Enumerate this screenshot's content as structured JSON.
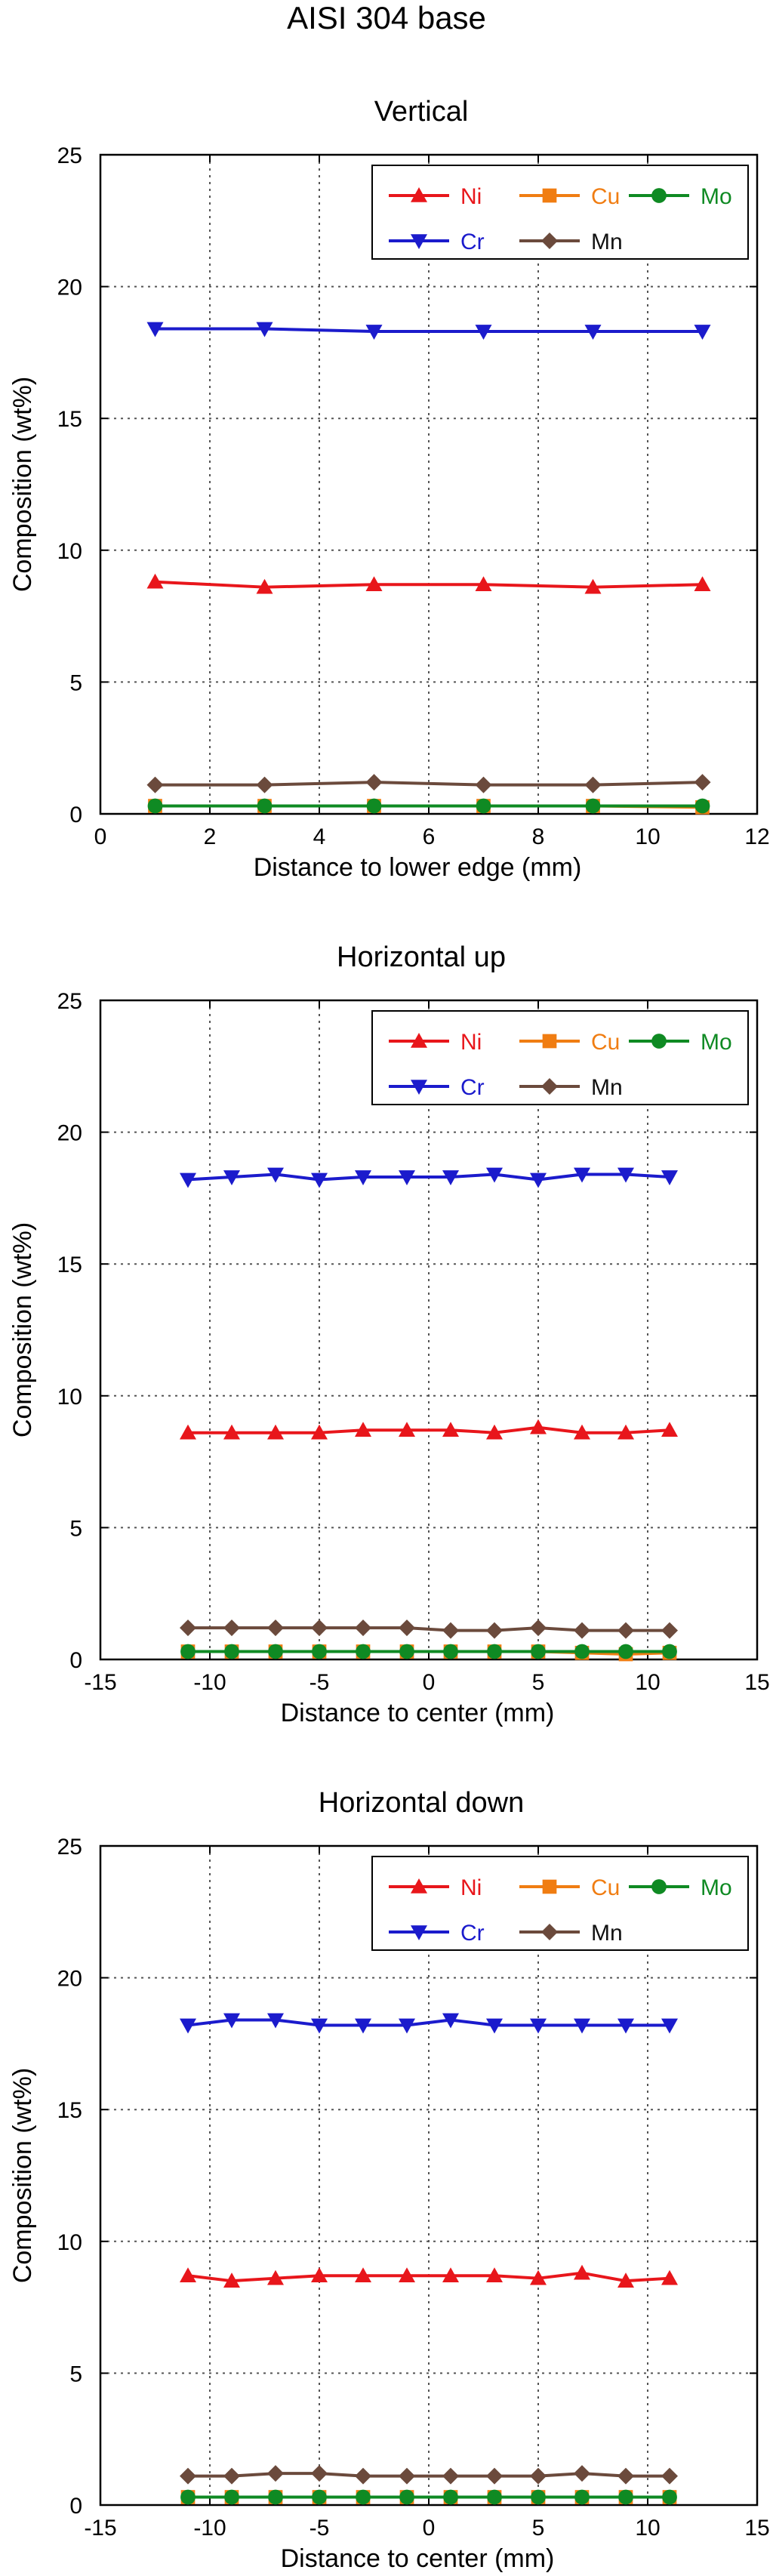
{
  "title": "AISI 304 base",
  "colors": {
    "Ni": "#e8161b",
    "Cu": "#f07d12",
    "Mo": "#0f8a23",
    "Cr": "#1b1bcc",
    "Mn": "#6b4a3c"
  },
  "chart_data": [
    {
      "type": "line",
      "title": "Vertical",
      "xlabel": "Distance to lower edge (mm)",
      "ylabel": "Composition (wt%)",
      "xlim": [
        0,
        12
      ],
      "ylim": [
        0,
        25
      ],
      "xticks": [
        0,
        2,
        4,
        6,
        8,
        10,
        12
      ],
      "xtick_labels": [
        "0",
        "2",
        "4",
        "6",
        "8",
        "10",
        "12"
      ],
      "yticks": [
        0,
        5,
        10,
        15,
        20,
        25
      ],
      "ytick_labels": [
        "0",
        "5",
        "10",
        "15",
        "20",
        "25"
      ],
      "grid": true,
      "legend": "top-right",
      "x": [
        1,
        3,
        5,
        7,
        9,
        11
      ],
      "series": [
        {
          "name": "Ni",
          "marker": "triangle-up",
          "values": [
            8.8,
            8.6,
            8.7,
            8.7,
            8.6,
            8.7
          ]
        },
        {
          "name": "Cu",
          "marker": "square",
          "values": [
            0.3,
            0.3,
            0.3,
            0.3,
            0.3,
            0.25
          ]
        },
        {
          "name": "Mo",
          "marker": "circle",
          "values": [
            0.3,
            0.3,
            0.3,
            0.3,
            0.3,
            0.3
          ]
        },
        {
          "name": "Cr",
          "marker": "triangle-down",
          "values": [
            18.4,
            18.4,
            18.3,
            18.3,
            18.3,
            18.3
          ]
        },
        {
          "name": "Mn",
          "marker": "diamond",
          "values": [
            1.1,
            1.1,
            1.2,
            1.1,
            1.1,
            1.2
          ]
        }
      ]
    },
    {
      "type": "line",
      "title": "Horizontal up",
      "xlabel": "Distance to center (mm)",
      "ylabel": "Composition (wt%)",
      "xlim": [
        -15,
        15
      ],
      "ylim": [
        0,
        25
      ],
      "xticks": [
        -15,
        -10,
        -5,
        0,
        5,
        10,
        15
      ],
      "xtick_labels": [
        "-15",
        "-10",
        "-5",
        "0",
        "5",
        "10",
        "15"
      ],
      "yticks": [
        0,
        5,
        10,
        15,
        20,
        25
      ],
      "ytick_labels": [
        "0",
        "5",
        "10",
        "15",
        "20",
        "25"
      ],
      "grid": true,
      "legend": "top-right",
      "x": [
        -11,
        -9,
        -7,
        -5,
        -3,
        -1,
        1,
        3,
        5,
        7,
        9,
        11
      ],
      "series": [
        {
          "name": "Ni",
          "marker": "triangle-up",
          "values": [
            8.6,
            8.6,
            8.6,
            8.6,
            8.7,
            8.7,
            8.7,
            8.6,
            8.8,
            8.6,
            8.6,
            8.7
          ]
        },
        {
          "name": "Cu",
          "marker": "square",
          "values": [
            0.3,
            0.3,
            0.3,
            0.3,
            0.3,
            0.3,
            0.3,
            0.3,
            0.3,
            0.25,
            0.2,
            0.25
          ]
        },
        {
          "name": "Mo",
          "marker": "circle",
          "values": [
            0.3,
            0.3,
            0.3,
            0.3,
            0.3,
            0.3,
            0.3,
            0.3,
            0.3,
            0.3,
            0.3,
            0.3
          ]
        },
        {
          "name": "Cr",
          "marker": "triangle-down",
          "values": [
            18.2,
            18.3,
            18.4,
            18.2,
            18.3,
            18.3,
            18.3,
            18.4,
            18.2,
            18.4,
            18.4,
            18.3
          ]
        },
        {
          "name": "Mn",
          "marker": "diamond",
          "values": [
            1.2,
            1.2,
            1.2,
            1.2,
            1.2,
            1.2,
            1.1,
            1.1,
            1.2,
            1.1,
            1.1,
            1.1
          ]
        }
      ]
    },
    {
      "type": "line",
      "title": "Horizontal down",
      "xlabel": "Distance to center (mm)",
      "ylabel": "Composition (wt%)",
      "xlim": [
        -15,
        15
      ],
      "ylim": [
        0,
        25
      ],
      "xticks": [
        -15,
        -10,
        -5,
        0,
        5,
        10,
        15
      ],
      "xtick_labels": [
        "-15",
        "-10",
        "-5",
        "0",
        "5",
        "10",
        "15"
      ],
      "yticks": [
        0,
        5,
        10,
        15,
        20,
        25
      ],
      "ytick_labels": [
        "0",
        "5",
        "10",
        "15",
        "20",
        "25"
      ],
      "grid": true,
      "legend": "top-right",
      "x": [
        -11,
        -9,
        -7,
        -5,
        -3,
        -1,
        1,
        3,
        5,
        7,
        9,
        11
      ],
      "series": [
        {
          "name": "Ni",
          "marker": "triangle-up",
          "values": [
            8.7,
            8.5,
            8.6,
            8.7,
            8.7,
            8.7,
            8.7,
            8.7,
            8.6,
            8.8,
            8.5,
            8.6
          ]
        },
        {
          "name": "Cu",
          "marker": "square",
          "values": [
            0.3,
            0.3,
            0.3,
            0.3,
            0.3,
            0.3,
            0.3,
            0.3,
            0.3,
            0.3,
            0.3,
            0.3
          ]
        },
        {
          "name": "Mo",
          "marker": "circle",
          "values": [
            0.3,
            0.3,
            0.3,
            0.3,
            0.3,
            0.3,
            0.3,
            0.3,
            0.3,
            0.3,
            0.3,
            0.3
          ]
        },
        {
          "name": "Cr",
          "marker": "triangle-down",
          "values": [
            18.2,
            18.4,
            18.4,
            18.2,
            18.2,
            18.2,
            18.4,
            18.2,
            18.2,
            18.2,
            18.2,
            18.2
          ]
        },
        {
          "name": "Mn",
          "marker": "diamond",
          "values": [
            1.1,
            1.1,
            1.2,
            1.2,
            1.1,
            1.1,
            1.1,
            1.1,
            1.1,
            1.2,
            1.1,
            1.1
          ]
        }
      ]
    }
  ]
}
